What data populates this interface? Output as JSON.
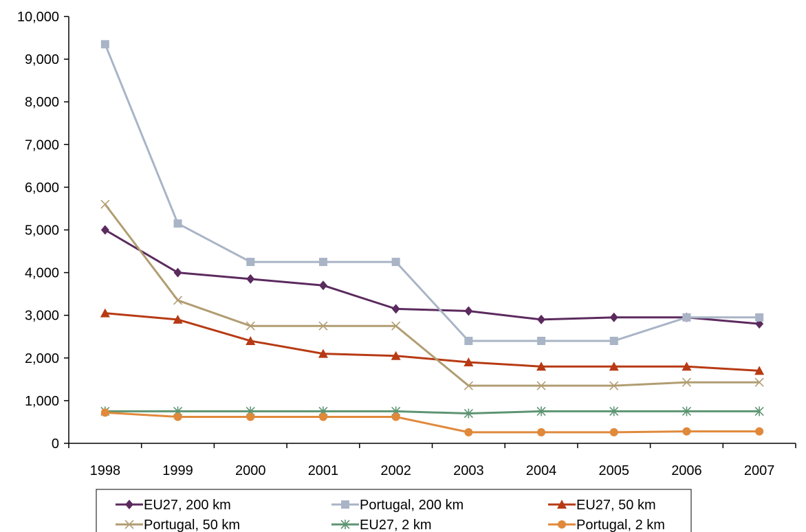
{
  "chart_data": {
    "type": "line",
    "title": "",
    "xlabel": "",
    "ylabel": "",
    "categories": [
      "1998",
      "1999",
      "2000",
      "2001",
      "2002",
      "2003",
      "2004",
      "2005",
      "2006",
      "2007"
    ],
    "ylim": [
      0,
      10000
    ],
    "yticks": [
      0,
      1000,
      2000,
      3000,
      4000,
      5000,
      6000,
      7000,
      8000,
      9000,
      10000
    ],
    "ytick_labels": [
      "0",
      "1,000",
      "2,000",
      "3,000",
      "4,000",
      "5,000",
      "6,000",
      "7,000",
      "8,000",
      "9,000",
      "10,000"
    ],
    "grid": false,
    "legend_position": "bottom",
    "series": [
      {
        "name": "EU27, 200 km",
        "color": "#5b2a5e",
        "marker": "diamond",
        "values": [
          5000,
          4000,
          3850,
          3700,
          3150,
          3100,
          2900,
          2950,
          2950,
          2800
        ]
      },
      {
        "name": "Portugal, 200 km",
        "color": "#a9b4c6",
        "marker": "square",
        "values": [
          9350,
          5150,
          4250,
          4250,
          4250,
          2400,
          2400,
          2400,
          2950,
          2950
        ]
      },
      {
        "name": "EU27, 50 km",
        "color": "#b73a14",
        "marker": "triangle",
        "values": [
          3050,
          2900,
          2400,
          2100,
          2050,
          1900,
          1800,
          1800,
          1800,
          1700
        ]
      },
      {
        "name": "Portugal, 50 km",
        "color": "#b19d72",
        "marker": "x",
        "values": [
          5600,
          3350,
          2750,
          2750,
          2750,
          1350,
          1350,
          1350,
          1430,
          1430
        ]
      },
      {
        "name": "EU27, 2 km",
        "color": "#5d9472",
        "marker": "star",
        "values": [
          750,
          750,
          750,
          750,
          750,
          700,
          750,
          750,
          750,
          750
        ]
      },
      {
        "name": "Portugal, 2 km",
        "color": "#e0893b",
        "marker": "circle",
        "values": [
          720,
          620,
          620,
          620,
          620,
          260,
          260,
          260,
          280,
          280
        ]
      }
    ]
  }
}
